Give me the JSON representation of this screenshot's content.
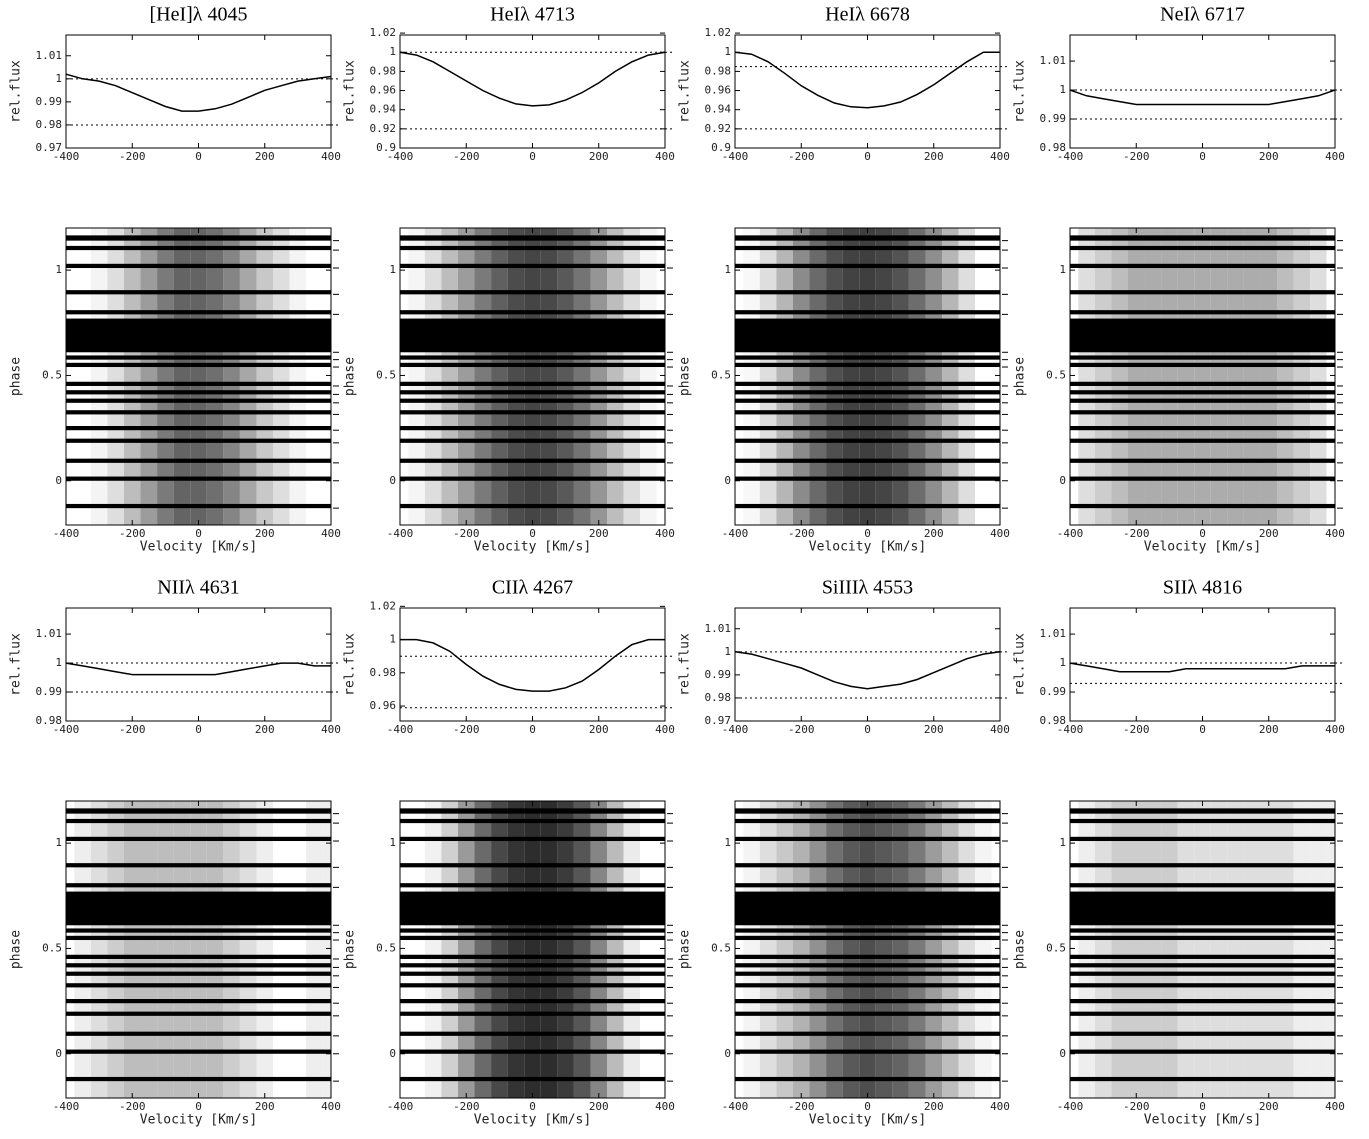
{
  "chart_data": [
    {
      "type": "line",
      "title": "[HeI]λ 4045",
      "ylabel": "rel.flux",
      "x": [
        -400,
        -350,
        -300,
        -250,
        -200,
        -150,
        -100,
        -50,
        0,
        50,
        100,
        150,
        200,
        250,
        300,
        350,
        400
      ],
      "values": [
        1.002,
        1.0,
        0.999,
        0.997,
        0.994,
        0.991,
        0.988,
        0.986,
        0.986,
        0.987,
        0.989,
        0.992,
        0.995,
        0.997,
        0.999,
        1.0,
        1.001
      ],
      "xlim": [
        -400,
        400
      ],
      "xticks": [
        -400,
        -200,
        0,
        200,
        400
      ],
      "ylim": [
        0.97,
        1.019
      ],
      "yticks": [
        0.97,
        0.98,
        0.99,
        1,
        1.01
      ],
      "hlines": [
        1,
        0.98
      ]
    },
    {
      "type": "heatmap",
      "xlabel": "Velocity [Km/s]",
      "ylabel": "phase",
      "xlim": [
        -400,
        400
      ],
      "xticks": [
        -400,
        -200,
        0,
        200,
        400
      ],
      "ylim": [
        -0.21,
        1.2
      ],
      "yticks": [
        0,
        0.5,
        1
      ],
      "gaps": [
        [
          1.14,
          1.165
        ],
        [
          1.095,
          1.115
        ],
        [
          1.01,
          1.03
        ],
        [
          0.885,
          0.905
        ],
        [
          0.79,
          0.81
        ],
        [
          0.61,
          0.77
        ],
        [
          0.575,
          0.595
        ],
        [
          0.54,
          0.56
        ],
        [
          0.45,
          0.47
        ],
        [
          0.41,
          0.43
        ],
        [
          0.37,
          0.39
        ],
        [
          0.315,
          0.335
        ],
        [
          0.24,
          0.26
        ],
        [
          0.18,
          0.2
        ],
        [
          0.085,
          0.105
        ],
        [
          0.0,
          0.02
        ],
        [
          -0.13,
          -0.11
        ]
      ]
    },
    {
      "type": "line",
      "title": "HeIλ 4713",
      "ylabel": "rel.flux",
      "x": [
        -400,
        -350,
        -300,
        -250,
        -200,
        -150,
        -100,
        -50,
        0,
        50,
        100,
        150,
        200,
        250,
        300,
        350,
        400
      ],
      "values": [
        1.0,
        0.997,
        0.99,
        0.98,
        0.97,
        0.96,
        0.952,
        0.946,
        0.944,
        0.945,
        0.95,
        0.958,
        0.968,
        0.98,
        0.99,
        0.997,
        1.0
      ],
      "xlim": [
        -400,
        400
      ],
      "xticks": [
        -400,
        -200,
        0,
        200,
        400
      ],
      "ylim": [
        0.9,
        1.018
      ],
      "yticks": [
        0.9,
        0.92,
        0.94,
        0.96,
        0.98,
        1,
        1.02
      ],
      "hlines": [
        1,
        0.92
      ]
    },
    {
      "type": "heatmap",
      "xlabel": "Velocity [Km/s]",
      "ylabel": "phase",
      "xlim": [
        -400,
        400
      ],
      "xticks": [
        -400,
        -200,
        0,
        200,
        400
      ],
      "ylim": [
        -0.21,
        1.2
      ],
      "yticks": [
        0,
        0.5,
        1
      ],
      "gaps": [
        [
          1.14,
          1.165
        ],
        [
          1.095,
          1.115
        ],
        [
          1.01,
          1.03
        ],
        [
          0.885,
          0.905
        ],
        [
          0.79,
          0.81
        ],
        [
          0.61,
          0.77
        ],
        [
          0.575,
          0.595
        ],
        [
          0.54,
          0.56
        ],
        [
          0.45,
          0.47
        ],
        [
          0.41,
          0.43
        ],
        [
          0.37,
          0.39
        ],
        [
          0.315,
          0.335
        ],
        [
          0.24,
          0.26
        ],
        [
          0.18,
          0.2
        ],
        [
          0.085,
          0.105
        ],
        [
          0.0,
          0.02
        ],
        [
          -0.13,
          -0.11
        ]
      ]
    },
    {
      "type": "line",
      "title": "HeIλ 6678",
      "ylabel": "rel.flux",
      "x": [
        -400,
        -350,
        -300,
        -250,
        -200,
        -150,
        -100,
        -50,
        0,
        50,
        100,
        150,
        200,
        250,
        300,
        350,
        400
      ],
      "values": [
        1.0,
        0.998,
        0.99,
        0.978,
        0.965,
        0.955,
        0.947,
        0.943,
        0.942,
        0.944,
        0.948,
        0.956,
        0.966,
        0.978,
        0.99,
        1.0,
        1.0
      ],
      "xlim": [
        -400,
        400
      ],
      "xticks": [
        -400,
        -200,
        0,
        200,
        400
      ],
      "ylim": [
        0.9,
        1.018
      ],
      "yticks": [
        0.9,
        0.92,
        0.94,
        0.96,
        0.98,
        1,
        1.02
      ],
      "hlines": [
        0.985,
        0.92
      ]
    },
    {
      "type": "heatmap",
      "xlabel": "Velocity [Km/s]",
      "ylabel": "phase",
      "xlim": [
        -400,
        400
      ],
      "xticks": [
        -400,
        -200,
        0,
        200,
        400
      ],
      "ylim": [
        -0.21,
        1.2
      ],
      "yticks": [
        0,
        0.5,
        1
      ],
      "gaps": [
        [
          1.14,
          1.165
        ],
        [
          1.095,
          1.115
        ],
        [
          1.01,
          1.03
        ],
        [
          0.885,
          0.905
        ],
        [
          0.79,
          0.81
        ],
        [
          0.61,
          0.77
        ],
        [
          0.575,
          0.595
        ],
        [
          0.54,
          0.56
        ],
        [
          0.45,
          0.47
        ],
        [
          0.41,
          0.43
        ],
        [
          0.37,
          0.39
        ],
        [
          0.315,
          0.335
        ],
        [
          0.24,
          0.26
        ],
        [
          0.18,
          0.2
        ],
        [
          0.085,
          0.105
        ],
        [
          0.0,
          0.02
        ],
        [
          -0.13,
          -0.11
        ]
      ]
    },
    {
      "type": "line",
      "title": "NeIλ 6717",
      "ylabel": "rel.flux",
      "x": [
        -400,
        -350,
        -300,
        -250,
        -200,
        -150,
        -100,
        -50,
        0,
        50,
        100,
        150,
        200,
        250,
        300,
        350,
        400
      ],
      "values": [
        1.0,
        0.998,
        0.997,
        0.996,
        0.995,
        0.995,
        0.995,
        0.995,
        0.995,
        0.995,
        0.995,
        0.995,
        0.995,
        0.996,
        0.997,
        0.998,
        1.0
      ],
      "xlim": [
        -400,
        400
      ],
      "xticks": [
        -400,
        -200,
        0,
        200,
        400
      ],
      "ylim": [
        0.98,
        1.019
      ],
      "yticks": [
        0.98,
        0.99,
        1,
        1.01
      ],
      "hlines": [
        1,
        0.99
      ]
    },
    {
      "type": "heatmap",
      "xlabel": "Velocity [Km/s]",
      "ylabel": "phase",
      "xlim": [
        -400,
        400
      ],
      "xticks": [
        -400,
        -200,
        0,
        200,
        400
      ],
      "ylim": [
        -0.21,
        1.2
      ],
      "yticks": [
        0,
        0.5,
        1
      ],
      "gaps": [
        [
          1.14,
          1.165
        ],
        [
          1.095,
          1.115
        ],
        [
          1.01,
          1.03
        ],
        [
          0.885,
          0.905
        ],
        [
          0.79,
          0.81
        ],
        [
          0.61,
          0.77
        ],
        [
          0.575,
          0.595
        ],
        [
          0.54,
          0.56
        ],
        [
          0.45,
          0.47
        ],
        [
          0.41,
          0.43
        ],
        [
          0.37,
          0.39
        ],
        [
          0.315,
          0.335
        ],
        [
          0.24,
          0.26
        ],
        [
          0.18,
          0.2
        ],
        [
          0.085,
          0.105
        ],
        [
          0.0,
          0.02
        ],
        [
          -0.13,
          -0.11
        ]
      ]
    },
    {
      "type": "line",
      "title": "NIIλ 4631",
      "ylabel": "rel.flux",
      "x": [
        -400,
        -350,
        -300,
        -250,
        -200,
        -150,
        -100,
        -50,
        0,
        50,
        100,
        150,
        200,
        250,
        300,
        350,
        400
      ],
      "values": [
        1.0,
        0.999,
        0.998,
        0.997,
        0.996,
        0.996,
        0.996,
        0.996,
        0.996,
        0.996,
        0.997,
        0.998,
        0.999,
        1.0,
        1.0,
        0.999,
        0.999
      ],
      "xlim": [
        -400,
        400
      ],
      "xticks": [
        -400,
        -200,
        0,
        200,
        400
      ],
      "ylim": [
        0.98,
        1.019
      ],
      "yticks": [
        0.98,
        0.99,
        1,
        1.01
      ],
      "hlines": [
        1,
        0.99
      ]
    },
    {
      "type": "heatmap",
      "xlabel": "Velocity [Km/s]",
      "ylabel": "phase",
      "xlim": [
        -400,
        400
      ],
      "xticks": [
        -400,
        -200,
        0,
        200,
        400
      ],
      "ylim": [
        -0.21,
        1.2
      ],
      "yticks": [
        0,
        0.5,
        1
      ],
      "gaps": [
        [
          1.14,
          1.165
        ],
        [
          1.095,
          1.115
        ],
        [
          1.01,
          1.03
        ],
        [
          0.885,
          0.905
        ],
        [
          0.79,
          0.81
        ],
        [
          0.61,
          0.77
        ],
        [
          0.575,
          0.595
        ],
        [
          0.54,
          0.56
        ],
        [
          0.45,
          0.47
        ],
        [
          0.41,
          0.43
        ],
        [
          0.37,
          0.39
        ],
        [
          0.315,
          0.335
        ],
        [
          0.24,
          0.26
        ],
        [
          0.18,
          0.2
        ],
        [
          0.085,
          0.105
        ],
        [
          0.0,
          0.02
        ],
        [
          -0.13,
          -0.11
        ]
      ]
    },
    {
      "type": "line",
      "title": "CIIλ 4267",
      "ylabel": "rel.flux",
      "x": [
        -400,
        -350,
        -300,
        -250,
        -200,
        -150,
        -100,
        -50,
        0,
        50,
        100,
        150,
        200,
        250,
        300,
        350,
        400
      ],
      "values": [
        1.0,
        1.0,
        0.998,
        0.993,
        0.985,
        0.978,
        0.973,
        0.97,
        0.969,
        0.969,
        0.971,
        0.975,
        0.982,
        0.99,
        0.997,
        1.0,
        1.0
      ],
      "xlim": [
        -400,
        400
      ],
      "xticks": [
        -400,
        -200,
        0,
        200,
        400
      ],
      "ylim": [
        0.951,
        1.019
      ],
      "yticks": [
        0.96,
        0.98,
        1,
        1.02
      ],
      "hlines": [
        0.99,
        0.959
      ]
    },
    {
      "type": "heatmap",
      "xlabel": "Velocity [Km/s]",
      "ylabel": "phase",
      "xlim": [
        -400,
        400
      ],
      "xticks": [
        -400,
        -200,
        0,
        200,
        400
      ],
      "ylim": [
        -0.21,
        1.2
      ],
      "yticks": [
        0,
        0.5,
        1
      ],
      "gaps": [
        [
          1.14,
          1.165
        ],
        [
          1.095,
          1.115
        ],
        [
          1.01,
          1.03
        ],
        [
          0.885,
          0.905
        ],
        [
          0.79,
          0.81
        ],
        [
          0.61,
          0.77
        ],
        [
          0.575,
          0.595
        ],
        [
          0.54,
          0.56
        ],
        [
          0.45,
          0.47
        ],
        [
          0.41,
          0.43
        ],
        [
          0.37,
          0.39
        ],
        [
          0.315,
          0.335
        ],
        [
          0.24,
          0.26
        ],
        [
          0.18,
          0.2
        ],
        [
          0.085,
          0.105
        ],
        [
          0.0,
          0.02
        ],
        [
          -0.13,
          -0.11
        ]
      ]
    },
    {
      "type": "line",
      "title": "SiIIIλ 4553",
      "ylabel": "rel.flux",
      "x": [
        -400,
        -350,
        -300,
        -250,
        -200,
        -150,
        -100,
        -50,
        0,
        50,
        100,
        150,
        200,
        250,
        300,
        350,
        400
      ],
      "values": [
        1.0,
        0.999,
        0.997,
        0.995,
        0.993,
        0.99,
        0.987,
        0.985,
        0.984,
        0.985,
        0.986,
        0.988,
        0.991,
        0.994,
        0.997,
        0.999,
        1.0
      ],
      "xlim": [
        -400,
        400
      ],
      "xticks": [
        -400,
        -200,
        0,
        200,
        400
      ],
      "ylim": [
        0.97,
        1.019
      ],
      "yticks": [
        0.97,
        0.98,
        0.99,
        1,
        1.01
      ],
      "hlines": [
        1,
        0.98
      ]
    },
    {
      "type": "heatmap",
      "xlabel": "Velocity [Km/s]",
      "ylabel": "phase",
      "xlim": [
        -400,
        400
      ],
      "xticks": [
        -400,
        -200,
        0,
        200,
        400
      ],
      "ylim": [
        -0.21,
        1.2
      ],
      "yticks": [
        0,
        0.5,
        1
      ],
      "gaps": [
        [
          1.14,
          1.165
        ],
        [
          1.095,
          1.115
        ],
        [
          1.01,
          1.03
        ],
        [
          0.885,
          0.905
        ],
        [
          0.79,
          0.81
        ],
        [
          0.61,
          0.77
        ],
        [
          0.575,
          0.595
        ],
        [
          0.54,
          0.56
        ],
        [
          0.45,
          0.47
        ],
        [
          0.41,
          0.43
        ],
        [
          0.37,
          0.39
        ],
        [
          0.315,
          0.335
        ],
        [
          0.24,
          0.26
        ],
        [
          0.18,
          0.2
        ],
        [
          0.085,
          0.105
        ],
        [
          0.0,
          0.02
        ],
        [
          -0.13,
          -0.11
        ]
      ]
    },
    {
      "type": "line",
      "title": "SIIλ 4816",
      "ylabel": "rel.flux",
      "x": [
        -400,
        -350,
        -300,
        -250,
        -200,
        -150,
        -100,
        -50,
        0,
        50,
        100,
        150,
        200,
        250,
        300,
        350,
        400
      ],
      "values": [
        1.0,
        0.999,
        0.998,
        0.997,
        0.997,
        0.997,
        0.997,
        0.998,
        0.998,
        0.998,
        0.998,
        0.998,
        0.998,
        0.998,
        0.999,
        0.999,
        0.999
      ],
      "xlim": [
        -400,
        400
      ],
      "xticks": [
        -400,
        -200,
        0,
        200,
        400
      ],
      "ylim": [
        0.98,
        1.019
      ],
      "yticks": [
        0.98,
        0.99,
        1,
        1.01
      ],
      "hlines": [
        1,
        0.993
      ]
    },
    {
      "type": "heatmap",
      "xlabel": "Velocity [Km/s]",
      "ylabel": "phase",
      "xlim": [
        -400,
        400
      ],
      "xticks": [
        -400,
        -200,
        0,
        200,
        400
      ],
      "ylim": [
        -0.21,
        1.2
      ],
      "yticks": [
        0,
        0.5,
        1
      ],
      "gaps": [
        [
          1.14,
          1.165
        ],
        [
          1.095,
          1.115
        ],
        [
          1.01,
          1.03
        ],
        [
          0.885,
          0.905
        ],
        [
          0.79,
          0.81
        ],
        [
          0.61,
          0.77
        ],
        [
          0.575,
          0.595
        ],
        [
          0.54,
          0.56
        ],
        [
          0.45,
          0.47
        ],
        [
          0.41,
          0.43
        ],
        [
          0.37,
          0.39
        ],
        [
          0.315,
          0.335
        ],
        [
          0.24,
          0.26
        ],
        [
          0.18,
          0.2
        ],
        [
          0.085,
          0.105
        ],
        [
          0.0,
          0.02
        ],
        [
          -0.13,
          -0.11
        ]
      ]
    }
  ]
}
